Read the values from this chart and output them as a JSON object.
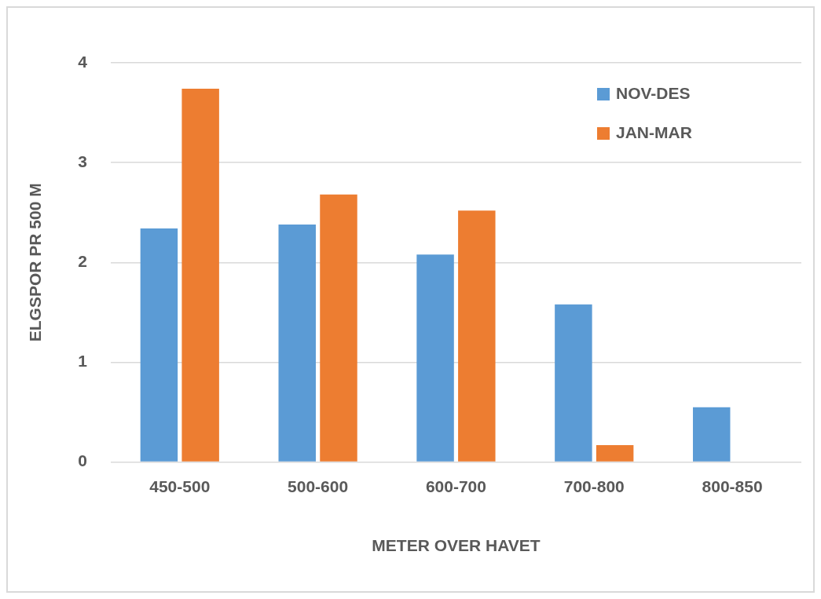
{
  "chart_data": {
    "type": "bar",
    "xlabel": "METER OVER HAVET",
    "ylabel": "ELGSPOR PR 500 M",
    "categories": [
      "450-500",
      "500-600",
      "600-700",
      "700-800",
      "800-850"
    ],
    "series": [
      {
        "name": "NOV-DES",
        "color": "#5b9bd5",
        "values": [
          2.34,
          2.38,
          2.08,
          1.58,
          0.55
        ]
      },
      {
        "name": "JAN-MAR",
        "color": "#ed7d31",
        "values": [
          3.74,
          2.68,
          2.52,
          0.17,
          null
        ]
      }
    ],
    "ylim": [
      0,
      4
    ],
    "yticks": [
      0,
      1,
      2,
      3,
      4
    ],
    "grid": "y",
    "legend": "top right"
  }
}
